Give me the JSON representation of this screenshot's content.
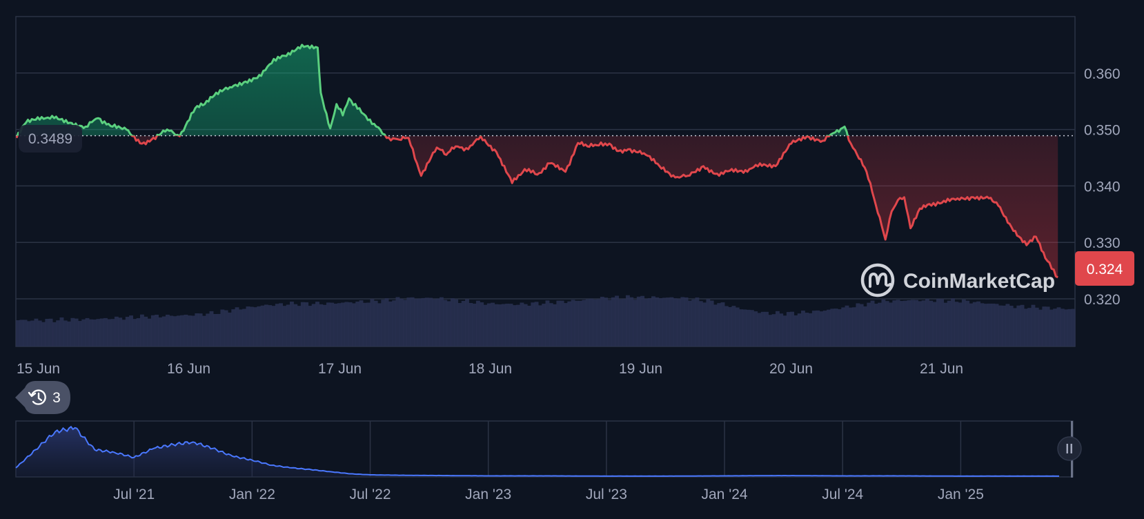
{
  "colors": {
    "background": "#0d1421",
    "grid": "#2b3345",
    "up": "#16c784",
    "up_line": "#5bd07f",
    "down": "#ea3943",
    "down_line": "#e0474c",
    "volume": "#2a3152",
    "navigator_line": "#4a78ff",
    "tick_text": "#a1a7bb"
  },
  "main_chart": {
    "reference_price": 0.3489,
    "reference_label": "0.3489",
    "current_price": 0.324,
    "current_price_label": "0.324",
    "watermark": "CoinMarketCap",
    "history_badge_count": "3"
  },
  "chart_data": [
    {
      "type": "line",
      "x_unit": "date",
      "ylim": [
        0.31,
        0.37
      ],
      "ytick_labels": [
        "0.360",
        "0.350",
        "0.340",
        "0.330",
        "0.320"
      ],
      "xtick_labels": [
        "15 Jun",
        "16 Jun",
        "17 Jun",
        "18 Jun",
        "19 Jun",
        "20 Jun",
        "21 Jun"
      ],
      "baseline": 0.3489,
      "grid": true,
      "x": [
        "15 Jun 00:00",
        "15 Jun 01:30",
        "15 Jun 04:00",
        "15 Jun 06:00",
        "15 Jun 08:30",
        "15 Jun 11:00",
        "15 Jun 13:00",
        "15 Jun 15:00",
        "15 Jun 17:30",
        "15 Jun 20:00",
        "15 Jun 21:30",
        "16 Jun 00:00",
        "16 Jun 02:00",
        "16 Jun 04:30",
        "16 Jun 06:00",
        "16 Jun 07:30",
        "16 Jun 10:00",
        "16 Jun 12:30",
        "16 Jun 15:00",
        "16 Jun 17:00",
        "16 Jun 19:00",
        "16 Jun 21:30",
        "17 Jun 00:00",
        "17 Jun 00:30",
        "17 Jun 02:00",
        "17 Jun 03:00",
        "17 Jun 04:00",
        "17 Jun 05:00",
        "17 Jun 07:00",
        "17 Jun 09:00",
        "17 Jun 11:00",
        "17 Jun 13:00",
        "17 Jun 14:30",
        "17 Jun 16:30",
        "17 Jun 19:00",
        "17 Jun 20:30",
        "17 Jun 22:00",
        "18 Jun 00:00",
        "18 Jun 02:00",
        "18 Jun 04:30",
        "18 Jun 07:00",
        "18 Jun 09:00",
        "18 Jun 11:00",
        "18 Jun 13:00",
        "18 Jun 15:30",
        "18 Jun 17:30",
        "18 Jun 19:00",
        "18 Jun 20:30",
        "18 Jun 22:30",
        "19 Jun 00:00",
        "19 Jun 01:30",
        "19 Jun 04:00",
        "19 Jun 06:30",
        "19 Jun 09:00",
        "19 Jun 11:00",
        "19 Jun 13:30",
        "19 Jun 16:00",
        "19 Jun 18:00",
        "19 Jun 20:30",
        "19 Jun 22:30",
        "20 Jun 01:00",
        "20 Jun 03:30",
        "20 Jun 06:00",
        "20 Jun 08:30",
        "20 Jun 10:30",
        "20 Jun 12:00",
        "20 Jun 13:00",
        "20 Jun 14:00",
        "20 Jun 15:30",
        "20 Jun 17:00",
        "20 Jun 18:30",
        "20 Jun 19:30",
        "20 Jun 20:30",
        "20 Jun 21:30",
        "20 Jun 22:30",
        "21 Jun 00:00",
        "21 Jun 01:30",
        "21 Jun 03:30",
        "21 Jun 06:00",
        "21 Jun 08:30",
        "21 Jun 11:00",
        "21 Jun 12:30",
        "21 Jun 14:00",
        "21 Jun 15:30",
        "21 Jun 17:00",
        "21 Jun 18:30",
        "21 Jun 20:00",
        "21 Jun 22:00"
      ],
      "values": [
        0.3485,
        0.3512,
        0.3522,
        0.352,
        0.3512,
        0.3505,
        0.352,
        0.3506,
        0.35,
        0.3475,
        0.3482,
        0.35,
        0.3488,
        0.3538,
        0.3545,
        0.356,
        0.3575,
        0.3585,
        0.3595,
        0.3625,
        0.363,
        0.365,
        0.3645,
        0.3565,
        0.3502,
        0.3545,
        0.3525,
        0.3555,
        0.353,
        0.351,
        0.3485,
        0.3482,
        0.3485,
        0.3418,
        0.3468,
        0.3455,
        0.347,
        0.3465,
        0.3488,
        0.346,
        0.3405,
        0.343,
        0.342,
        0.344,
        0.3425,
        0.3476,
        0.347,
        0.3472,
        0.3475,
        0.3462,
        0.3465,
        0.3458,
        0.3435,
        0.3415,
        0.3418,
        0.3435,
        0.3418,
        0.343,
        0.3425,
        0.344,
        0.3435,
        0.3475,
        0.3488,
        0.348,
        0.3495,
        0.3505,
        0.3475,
        0.3455,
        0.3425,
        0.3365,
        0.3305,
        0.3355,
        0.3375,
        0.338,
        0.3325,
        0.336,
        0.3368,
        0.337,
        0.3378,
        0.338,
        0.3378,
        0.3365,
        0.3335,
        0.3312,
        0.3295,
        0.331,
        0.3272,
        0.3238
      ]
    },
    {
      "type": "area",
      "x_unit": "date",
      "xtick_labels": [
        "Jul '21",
        "Jan '22",
        "Jul '22",
        "Jan '23",
        "Jul '23",
        "Jan '24",
        "Jul '24",
        "Jan '25"
      ],
      "x": [
        "Jan '21",
        "Feb '21",
        "Mar '21",
        "Apr '21",
        "May '21",
        "Jun '21",
        "Jul '21",
        "Aug '21",
        "Sep '21",
        "Oct '21",
        "Nov '21",
        "Dec '21",
        "Jan '22",
        "Feb '22",
        "Mar '22",
        "Apr '22",
        "May '22",
        "Jun '22",
        "Jul '22",
        "Sep '22",
        "Nov '22",
        "Jan '23",
        "Apr '23",
        "Jul '23",
        "Oct '23",
        "Jan '24",
        "Apr '24",
        "Jul '24",
        "Oct '24",
        "Jan '25",
        "Apr '25",
        "Jun '25"
      ],
      "values": [
        0.35,
        1.05,
        1.75,
        1.9,
        1.05,
        0.95,
        0.75,
        1.1,
        1.25,
        1.35,
        1.1,
        0.8,
        0.65,
        0.45,
        0.35,
        0.28,
        0.2,
        0.12,
        0.08,
        0.06,
        0.05,
        0.04,
        0.04,
        0.03,
        0.03,
        0.04,
        0.05,
        0.04,
        0.04,
        0.03,
        0.03,
        0.03
      ]
    }
  ]
}
